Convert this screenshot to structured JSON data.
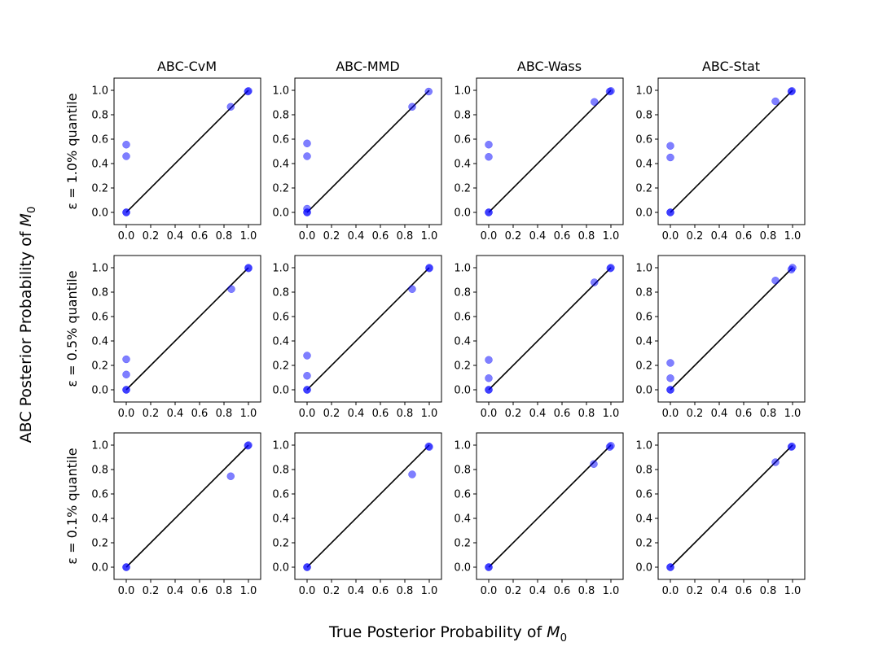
{
  "figure": {
    "xlabel_prefix": "True Posterior Probability of ",
    "ylabel_prefix": "ABC Posterior Probability of ",
    "symbol": "M",
    "symbol_sub": "0"
  },
  "columns": [
    "ABC-CvM",
    "ABC-MMD",
    "ABC-Wass",
    "ABC-Stat"
  ],
  "rows": [
    "ε = 1.0% quantile",
    "ε = 0.5% quantile",
    "ε = 0.1% quantile"
  ],
  "colors": {
    "points": "#0000ff",
    "line": "#000000",
    "axes": "#000000"
  },
  "chart_data": [
    {
      "type": "scatter",
      "row": 0,
      "col": 0,
      "xlim": [
        -0.1,
        1.1
      ],
      "ylim": [
        -0.1,
        1.1
      ],
      "ticks": [
        "0.0",
        "0.2",
        "0.4",
        "0.6",
        "0.8",
        "1.0"
      ],
      "points": [
        [
          0,
          0
        ],
        [
          0,
          0
        ],
        [
          0,
          0.46
        ],
        [
          0,
          0.555
        ],
        [
          0.855,
          0.865
        ],
        [
          0.995,
          0.99
        ],
        [
          1.0,
          0.995
        ]
      ],
      "reference_line": [
        [
          0,
          0
        ],
        [
          1,
          1
        ]
      ]
    },
    {
      "type": "scatter",
      "row": 0,
      "col": 1,
      "xlim": [
        -0.1,
        1.1
      ],
      "ylim": [
        -0.1,
        1.1
      ],
      "ticks": [
        "0.0",
        "0.2",
        "0.4",
        "0.6",
        "0.8",
        "1.0"
      ],
      "points": [
        [
          0,
          0
        ],
        [
          0,
          0
        ],
        [
          0,
          0.03
        ],
        [
          0,
          0.46
        ],
        [
          0,
          0.565
        ],
        [
          0.86,
          0.865
        ],
        [
          0.995,
          0.99
        ]
      ],
      "reference_line": [
        [
          0,
          0
        ],
        [
          1,
          1
        ]
      ]
    },
    {
      "type": "scatter",
      "row": 0,
      "col": 2,
      "xlim": [
        -0.1,
        1.1
      ],
      "ylim": [
        -0.1,
        1.1
      ],
      "ticks": [
        "0.0",
        "0.2",
        "0.4",
        "0.6",
        "0.8",
        "1.0"
      ],
      "points": [
        [
          0,
          0
        ],
        [
          0,
          0
        ],
        [
          0,
          0.455
        ],
        [
          0,
          0.555
        ],
        [
          0.865,
          0.905
        ],
        [
          0.99,
          0.99
        ],
        [
          1.0,
          0.995
        ]
      ],
      "reference_line": [
        [
          0,
          0
        ],
        [
          1,
          1
        ]
      ]
    },
    {
      "type": "scatter",
      "row": 0,
      "col": 3,
      "xlim": [
        -0.1,
        1.1
      ],
      "ylim": [
        -0.1,
        1.1
      ],
      "ticks": [
        "0.0",
        "0.2",
        "0.4",
        "0.6",
        "0.8",
        "1.0"
      ],
      "points": [
        [
          0,
          0
        ],
        [
          0,
          0
        ],
        [
          0,
          0.45
        ],
        [
          0,
          0.545
        ],
        [
          0.86,
          0.91
        ],
        [
          0.99,
          0.99
        ],
        [
          0.995,
          0.995
        ]
      ],
      "reference_line": [
        [
          0,
          0
        ],
        [
          1,
          1
        ]
      ]
    },
    {
      "type": "scatter",
      "row": 1,
      "col": 0,
      "xlim": [
        -0.1,
        1.1
      ],
      "ylim": [
        -0.1,
        1.1
      ],
      "ticks": [
        "0.0",
        "0.2",
        "0.4",
        "0.6",
        "0.8",
        "1.0"
      ],
      "points": [
        [
          0,
          0
        ],
        [
          0,
          0
        ],
        [
          0,
          0.125
        ],
        [
          0,
          0.25
        ],
        [
          0.86,
          0.825
        ],
        [
          1.0,
          1.0
        ],
        [
          1.0,
          0.995
        ]
      ],
      "reference_line": [
        [
          0,
          0
        ],
        [
          1,
          1
        ]
      ]
    },
    {
      "type": "scatter",
      "row": 1,
      "col": 1,
      "xlim": [
        -0.1,
        1.1
      ],
      "ylim": [
        -0.1,
        1.1
      ],
      "ticks": [
        "0.0",
        "0.2",
        "0.4",
        "0.6",
        "0.8",
        "1.0"
      ],
      "points": [
        [
          0,
          0
        ],
        [
          0,
          0
        ],
        [
          0,
          0.115
        ],
        [
          0,
          0.28
        ],
        [
          0.86,
          0.825
        ],
        [
          1.0,
          1.0
        ],
        [
          1.0,
          0.995
        ]
      ],
      "reference_line": [
        [
          0,
          0
        ],
        [
          1,
          1
        ]
      ]
    },
    {
      "type": "scatter",
      "row": 1,
      "col": 2,
      "xlim": [
        -0.1,
        1.1
      ],
      "ylim": [
        -0.1,
        1.1
      ],
      "ticks": [
        "0.0",
        "0.2",
        "0.4",
        "0.6",
        "0.8",
        "1.0"
      ],
      "points": [
        [
          0,
          0
        ],
        [
          0,
          0
        ],
        [
          0,
          0.095
        ],
        [
          0,
          0.245
        ],
        [
          0.865,
          0.88
        ],
        [
          1.0,
          1.0
        ],
        [
          0.995,
          0.995
        ]
      ],
      "reference_line": [
        [
          0,
          0
        ],
        [
          1,
          1
        ]
      ]
    },
    {
      "type": "scatter",
      "row": 1,
      "col": 3,
      "xlim": [
        -0.1,
        1.1
      ],
      "ylim": [
        -0.1,
        1.1
      ],
      "ticks": [
        "0.0",
        "0.2",
        "0.4",
        "0.6",
        "0.8",
        "1.0"
      ],
      "points": [
        [
          0,
          0
        ],
        [
          0,
          0
        ],
        [
          0,
          0.095
        ],
        [
          0,
          0.22
        ],
        [
          0.86,
          0.895
        ],
        [
          1.0,
          1.0
        ],
        [
          0.99,
          0.985
        ]
      ],
      "reference_line": [
        [
          0,
          0
        ],
        [
          1,
          1
        ]
      ]
    },
    {
      "type": "scatter",
      "row": 2,
      "col": 0,
      "xlim": [
        -0.1,
        1.1
      ],
      "ylim": [
        -0.1,
        1.1
      ],
      "ticks": [
        "0.0",
        "0.2",
        "0.4",
        "0.6",
        "0.8",
        "1.0"
      ],
      "points": [
        [
          0,
          0
        ],
        [
          0,
          0
        ],
        [
          0.855,
          0.745
        ],
        [
          1.0,
          1.0
        ],
        [
          0.995,
          0.995
        ]
      ],
      "reference_line": [
        [
          0,
          0
        ],
        [
          1,
          1
        ]
      ]
    },
    {
      "type": "scatter",
      "row": 2,
      "col": 1,
      "xlim": [
        -0.1,
        1.1
      ],
      "ylim": [
        -0.1,
        1.1
      ],
      "ticks": [
        "0.0",
        "0.2",
        "0.4",
        "0.6",
        "0.8",
        "1.0"
      ],
      "points": [
        [
          0,
          0
        ],
        [
          0,
          0
        ],
        [
          0.86,
          0.76
        ],
        [
          0.995,
          0.99
        ],
        [
          1.0,
          0.985
        ]
      ],
      "reference_line": [
        [
          0,
          0
        ],
        [
          1,
          1
        ]
      ]
    },
    {
      "type": "scatter",
      "row": 2,
      "col": 2,
      "xlim": [
        -0.1,
        1.1
      ],
      "ylim": [
        -0.1,
        1.1
      ],
      "ticks": [
        "0.0",
        "0.2",
        "0.4",
        "0.6",
        "0.8",
        "1.0"
      ],
      "points": [
        [
          0,
          0
        ],
        [
          0,
          0
        ],
        [
          0.86,
          0.845
        ],
        [
          0.99,
          0.985
        ],
        [
          1.0,
          0.995
        ]
      ],
      "reference_line": [
        [
          0,
          0
        ],
        [
          1,
          1
        ]
      ]
    },
    {
      "type": "scatter",
      "row": 2,
      "col": 3,
      "xlim": [
        -0.1,
        1.1
      ],
      "ylim": [
        -0.1,
        1.1
      ],
      "ticks": [
        "0.0",
        "0.2",
        "0.4",
        "0.6",
        "0.8",
        "1.0"
      ],
      "points": [
        [
          0,
          0
        ],
        [
          0,
          0
        ],
        [
          0.86,
          0.86
        ],
        [
          0.99,
          0.985
        ],
        [
          0.995,
          0.99
        ]
      ],
      "reference_line": [
        [
          0,
          0
        ],
        [
          1,
          1
        ]
      ]
    }
  ]
}
